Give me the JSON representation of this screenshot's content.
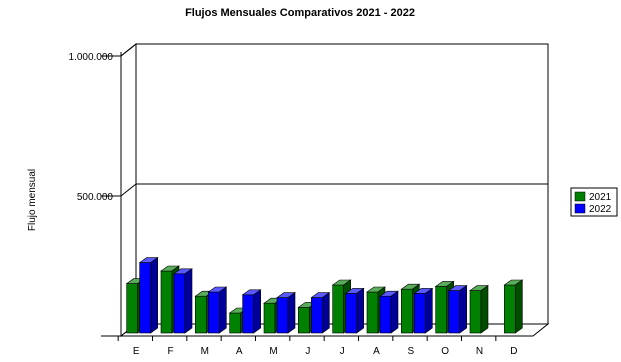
{
  "chart_data": {
    "type": "bar",
    "title": "Flujos Mensuales Comparativos 2021 - 2022",
    "ylabel": "Flujo mensual",
    "xlabel": "",
    "categories": [
      "E",
      "F",
      "M",
      "A",
      "M",
      "J",
      "J",
      "A",
      "S",
      "O",
      "N",
      "D"
    ],
    "series": [
      {
        "name": "2021",
        "color": "#008000",
        "values": [
          180000,
          225000,
          135000,
          75000,
          110000,
          95000,
          175000,
          150000,
          160000,
          170000,
          155000,
          175000
        ]
      },
      {
        "name": "2022",
        "color": "#0000ff",
        "values": [
          255000,
          215000,
          150000,
          140000,
          130000,
          130000,
          145000,
          135000,
          145000,
          155000,
          null,
          null
        ]
      }
    ],
    "y_ticks": [
      {
        "value": 0,
        "label": ""
      },
      {
        "value": 500000,
        "label": "500.000"
      },
      {
        "value": 1000000,
        "label": "1.000.000"
      }
    ],
    "ylim": [
      0,
      1000000
    ],
    "grid": true,
    "legend_position": "right",
    "style": "3d"
  }
}
